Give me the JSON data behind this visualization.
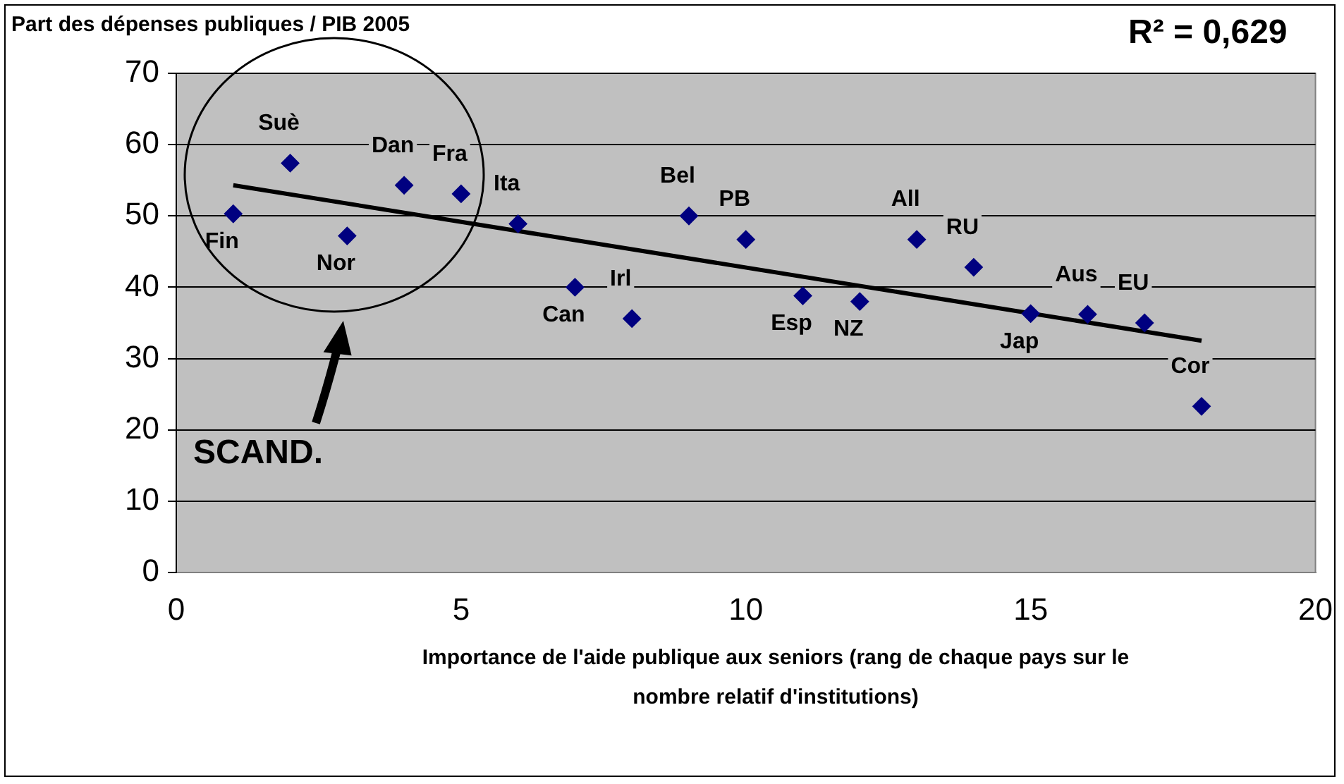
{
  "chart_data": {
    "type": "scatter",
    "title": "Part des dépenses publiques / PIB 2005",
    "xlabel": "Importance de l'aide publique aux seniors (rang de chaque pays sur le nombre relatif d'institutions)",
    "x": [
      1,
      2,
      3,
      4,
      5,
      6,
      7,
      8,
      9,
      10,
      11,
      12,
      13,
      14,
      15,
      16,
      17,
      18
    ],
    "series": [
      {
        "color": "#000080",
        "values": [
          50.3,
          57.4,
          47.2,
          54.3,
          53.1,
          48.9,
          40.0,
          35.6,
          50.0,
          46.7,
          38.8,
          38.0,
          46.7,
          42.8,
          36.3,
          36.2,
          35.0,
          23.3
        ]
      },
      {
        "type": "line",
        "color": "#000000",
        "x": [
          1,
          18
        ],
        "values": [
          54.3,
          32.5
        ],
        "marker": "none"
      }
    ],
    "marker": "diamond",
    "xlim": [
      0,
      20
    ],
    "xticks": [
      0,
      5,
      10,
      15,
      20
    ],
    "ylim": [
      0,
      70
    ],
    "yticks": [
      0,
      10,
      20,
      30,
      40,
      50,
      60,
      70
    ],
    "grid": "y",
    "legend": false,
    "annotations": [
      {
        "text": "Fin",
        "x": 1,
        "y": 50.3
      },
      {
        "text": "Suè",
        "x": 2,
        "y": 57.4
      },
      {
        "text": "Nor",
        "x": 3,
        "y": 47.2
      },
      {
        "text": "Dan",
        "x": 4,
        "y": 54.3
      },
      {
        "text": "Fra",
        "x": 5,
        "y": 53.1
      },
      {
        "text": "Ita",
        "x": 6,
        "y": 48.9
      },
      {
        "text": "Can",
        "x": 7,
        "y": 40.0
      },
      {
        "text": "Irl",
        "x": 8,
        "y": 35.6
      },
      {
        "text": "Bel",
        "x": 9,
        "y": 50.0
      },
      {
        "text": "PB",
        "x": 10,
        "y": 46.7
      },
      {
        "text": "Esp",
        "x": 11,
        "y": 38.8
      },
      {
        "text": "NZ",
        "x": 12,
        "y": 38.0
      },
      {
        "text": "All",
        "x": 13,
        "y": 46.7
      },
      {
        "text": "RU",
        "x": 14,
        "y": 42.8
      },
      {
        "text": "Jap",
        "x": 15,
        "y": 36.3
      },
      {
        "text": "Aus",
        "x": 16,
        "y": 36.2
      },
      {
        "text": "EU",
        "x": 17,
        "y": 35.0
      },
      {
        "text": "Cor",
        "x": 18,
        "y": 23.3
      },
      "SCAND.",
      "R² = 0,629"
    ]
  }
}
